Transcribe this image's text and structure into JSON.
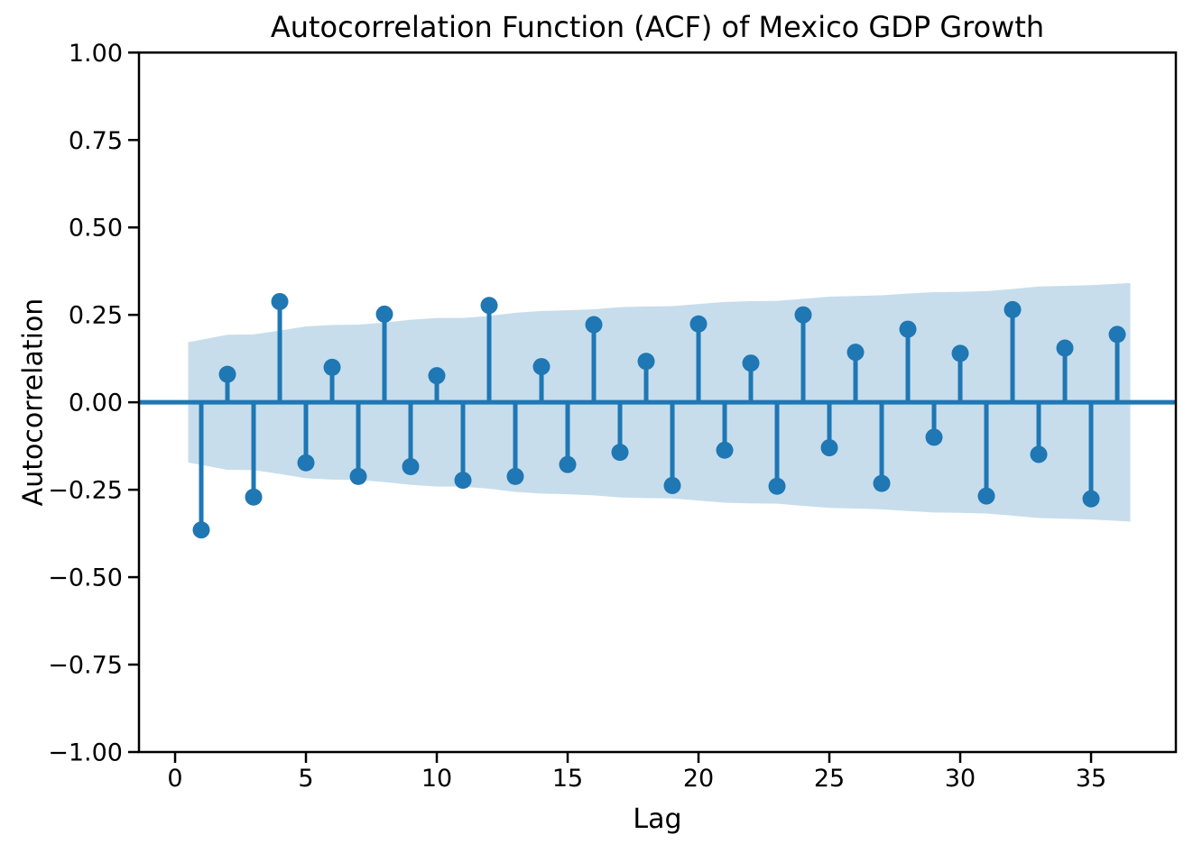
{
  "chart_data": {
    "type": "stem",
    "title": "Autocorrelation Function (ACF) of Mexico GDP Growth",
    "xlabel": "Lag",
    "ylabel": "Autocorrelation",
    "xlim": [
      -1.38,
      38.24
    ],
    "ylim": [
      -1.0,
      1.0
    ],
    "grid": false,
    "legend": "none",
    "x_ticks": [
      0,
      5,
      10,
      15,
      20,
      25,
      30,
      35
    ],
    "x_tick_labels": [
      "0",
      "5",
      "10",
      "15",
      "20",
      "25",
      "30",
      "35"
    ],
    "y_ticks": [
      1.0,
      0.75,
      0.5,
      0.25,
      0.0,
      -0.25,
      -0.5,
      -0.75,
      -1.0
    ],
    "y_tick_labels": [
      "1.00",
      "0.75",
      "0.50",
      "0.25",
      "0.00",
      "−0.25",
      "−0.50",
      "−0.75",
      "−1.00"
    ],
    "lags": [
      1,
      2,
      3,
      4,
      5,
      6,
      7,
      8,
      9,
      10,
      11,
      12,
      13,
      14,
      15,
      16,
      17,
      18,
      19,
      20,
      21,
      22,
      23,
      24,
      25,
      26,
      27,
      28,
      29,
      30,
      31,
      32,
      33,
      34,
      35,
      36
    ],
    "acf_values": [
      -0.365,
      0.08,
      -0.271,
      0.288,
      -0.173,
      0.1,
      -0.212,
      0.252,
      -0.184,
      0.076,
      -0.223,
      0.277,
      -0.212,
      0.102,
      -0.178,
      0.222,
      -0.143,
      0.117,
      -0.238,
      0.224,
      -0.137,
      0.112,
      -0.24,
      0.25,
      -0.13,
      0.143,
      -0.232,
      0.209,
      -0.1,
      0.14,
      -0.268,
      0.265,
      -0.149,
      0.155,
      -0.276,
      0.194
    ],
    "confidence_band": {
      "x": [
        0.5,
        2,
        3,
        4,
        5,
        6,
        7,
        8,
        9,
        10,
        11,
        12,
        13,
        14,
        15,
        16,
        17,
        18,
        19,
        20,
        21,
        22,
        23,
        24,
        25,
        26,
        27,
        28,
        29,
        30,
        31,
        32,
        33,
        34,
        35,
        36.5
      ],
      "upper": [
        0.172,
        0.193,
        0.194,
        0.205,
        0.217,
        0.221,
        0.222,
        0.228,
        0.236,
        0.241,
        0.241,
        0.247,
        0.256,
        0.261,
        0.263,
        0.266,
        0.272,
        0.274,
        0.275,
        0.281,
        0.287,
        0.289,
        0.29,
        0.296,
        0.302,
        0.304,
        0.306,
        0.311,
        0.315,
        0.316,
        0.318,
        0.324,
        0.331,
        0.333,
        0.335,
        0.341
      ],
      "lower": [
        -0.172,
        -0.193,
        -0.194,
        -0.205,
        -0.217,
        -0.221,
        -0.222,
        -0.228,
        -0.236,
        -0.241,
        -0.241,
        -0.247,
        -0.256,
        -0.261,
        -0.263,
        -0.266,
        -0.272,
        -0.274,
        -0.275,
        -0.281,
        -0.287,
        -0.289,
        -0.29,
        -0.296,
        -0.302,
        -0.304,
        -0.306,
        -0.311,
        -0.315,
        -0.316,
        -0.318,
        -0.324,
        -0.331,
        -0.333,
        -0.335,
        -0.341
      ]
    },
    "colors": {
      "stem": "#1f77b4",
      "marker": "#1f77b4",
      "zero_line": "#1f77b4",
      "band_fill": "#1f77b4",
      "band_opacity": 0.25,
      "axis": "#000000",
      "background": "#ffffff"
    }
  }
}
